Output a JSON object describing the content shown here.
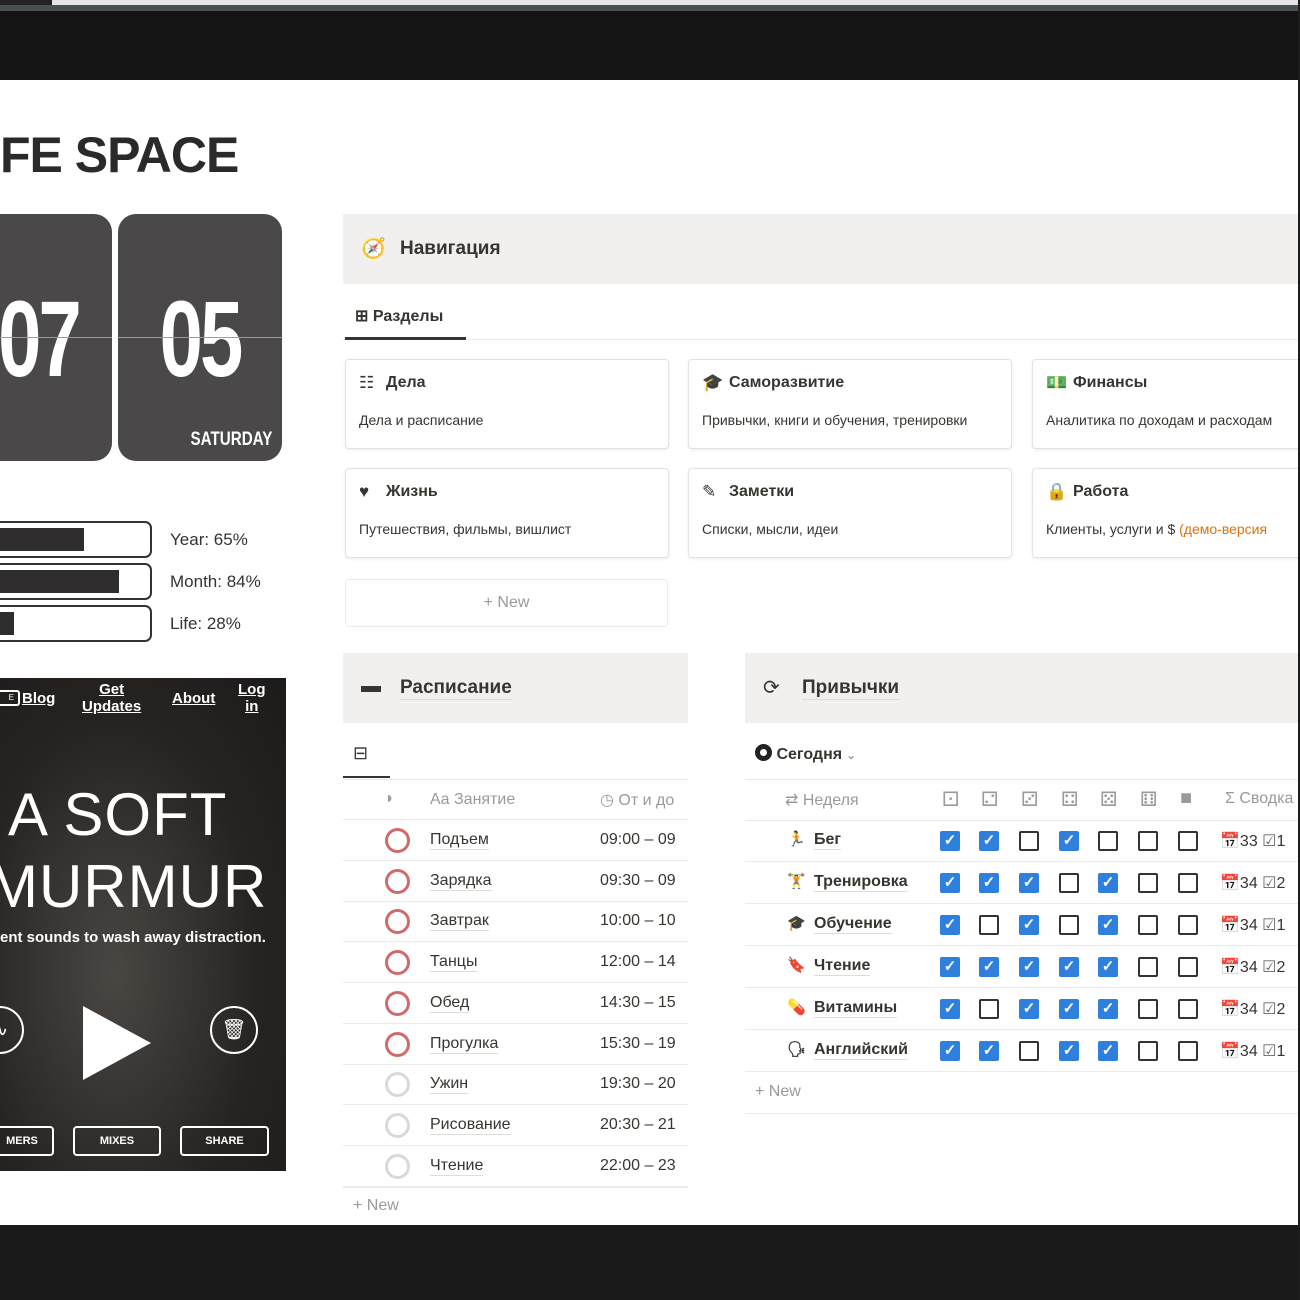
{
  "page_title": "FE SPACE",
  "clock": {
    "hours": "07",
    "minutes": "05",
    "weekday": "SATURDAY"
  },
  "progress": [
    {
      "label": "Year: 65%",
      "value": 65
    },
    {
      "label": "Month: 84%",
      "value": 84
    },
    {
      "label": "Life: 28%",
      "value": 28
    }
  ],
  "murmur": {
    "nav": {
      "e": "E",
      "blog": "Blog",
      "get_updates_1": "Get",
      "get_updates_2": "Updates",
      "about": "About",
      "login_1": "Log",
      "login_2": "in"
    },
    "headline_1": "A SOFT",
    "headline_2": "MURMUR",
    "tagline": "ent sounds to wash away distraction.",
    "buttons": [
      "MERS",
      "MIXES",
      "SHARE"
    ]
  },
  "navigation": {
    "title": "Навигация",
    "tab": "Разделы",
    "cards": [
      {
        "icon": "checklist-icon",
        "title": "Дела",
        "desc": "Дела и расписание"
      },
      {
        "icon": "graduation-cap-icon",
        "title": "Саморазвитие",
        "desc": "Привычки, книги и обучения, тренировки"
      },
      {
        "icon": "money-icon",
        "title": "Финансы",
        "desc": "Аналитика по доходам и расходам"
      },
      {
        "icon": "heart-icon",
        "title": "Жизнь",
        "desc": "Путешествия, фильмы, вишлист"
      },
      {
        "icon": "edit-icon",
        "title": "Заметки",
        "desc": "Списки, мысли, идеи"
      },
      {
        "icon": "lock-icon",
        "title": "Работа",
        "desc": "Клиенты, услуги и $ ",
        "desc_extra": "(демо-версия"
      }
    ],
    "new_label": "New"
  },
  "schedule": {
    "title": "Расписание",
    "col_name": "Aa Занятие",
    "col_time": "От и до",
    "rows": [
      {
        "name": "Подъем",
        "time": "09:00 – 09",
        "active": true
      },
      {
        "name": "Зарядка",
        "time": "09:30 – 09",
        "active": true
      },
      {
        "name": "Завтрак",
        "time": "10:00 – 10",
        "active": true
      },
      {
        "name": "Танцы",
        "time": "12:00 – 14",
        "active": true
      },
      {
        "name": "Обед",
        "time": "14:30 – 15",
        "active": true
      },
      {
        "name": "Прогулка",
        "time": "15:30 – 19",
        "active": true
      },
      {
        "name": "Ужин",
        "time": "19:30 – 20",
        "active": false
      },
      {
        "name": "Рисование",
        "time": "20:30 – 21",
        "active": false
      },
      {
        "name": "Чтение",
        "time": "22:00 – 23",
        "active": false
      }
    ],
    "new_label": "New"
  },
  "habits": {
    "title": "Привычки",
    "view": "Сегодня",
    "col_week": "Неделя",
    "col_summary": "Сводка",
    "rows": [
      {
        "name": "Бег",
        "icon": "running-icon",
        "checks": [
          1,
          1,
          0,
          1,
          0,
          0,
          0
        ],
        "week": "33",
        "count": "1"
      },
      {
        "name": "Тренировка",
        "icon": "dumbbell-icon",
        "checks": [
          1,
          1,
          1,
          0,
          1,
          0,
          0
        ],
        "week": "34",
        "count": "2"
      },
      {
        "name": "Обучение",
        "icon": "graduation-cap-icon",
        "checks": [
          1,
          0,
          1,
          0,
          1,
          0,
          0
        ],
        "week": "34",
        "count": "1"
      },
      {
        "name": "Чтение",
        "icon": "bookmark-icon",
        "checks": [
          1,
          1,
          1,
          1,
          1,
          0,
          0
        ],
        "week": "34",
        "count": "2"
      },
      {
        "name": "Витамины",
        "icon": "pill-icon",
        "checks": [
          1,
          0,
          1,
          1,
          1,
          0,
          0
        ],
        "week": "34",
        "count": "2"
      },
      {
        "name": "Английский",
        "icon": "language-icon",
        "checks": [
          1,
          1,
          0,
          1,
          1,
          0,
          0
        ],
        "week": "34",
        "count": "1"
      }
    ],
    "new_label": "New"
  },
  "colors": {
    "check": "#2f80dd",
    "status_active": "#d16b6b",
    "status_inactive": "#d9d9d9",
    "accent_orange": "#d9730d",
    "clock_card": "#4a4849"
  }
}
